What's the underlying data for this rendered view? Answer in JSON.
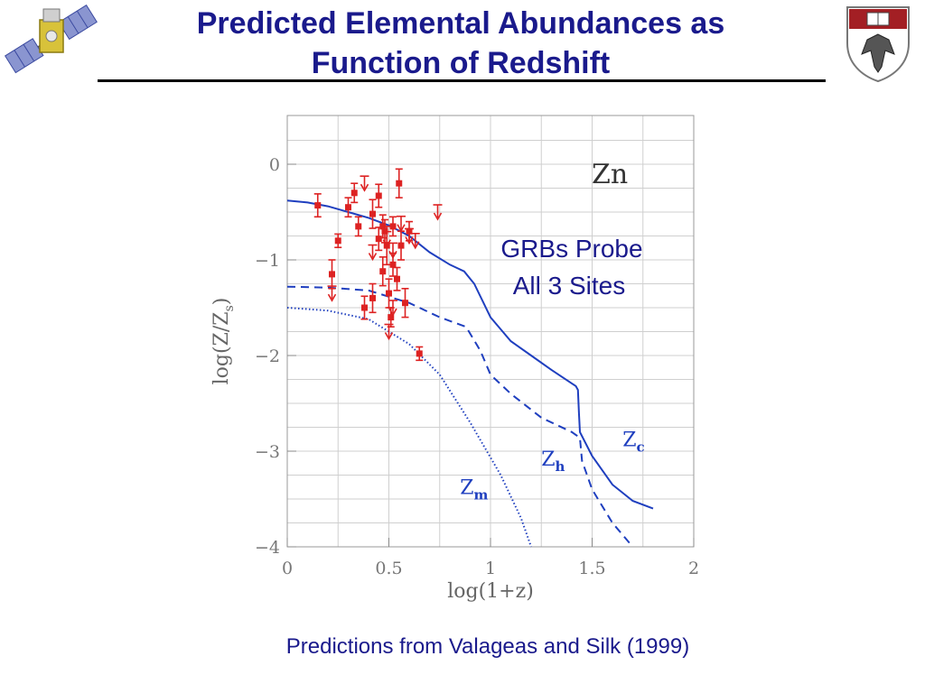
{
  "slide": {
    "title_line1": "Predicted Elemental Abundances as",
    "title_line2": "Function of Redshift",
    "caption": "Predictions from Valageas and Silk (1999)",
    "logo_left_icon": "satellite-icon",
    "logo_right_icon": "university-crest-icon",
    "title_color": "#1a1a8c"
  },
  "chart_data": {
    "type": "line",
    "element_label": "Zn",
    "annotation_line1": "GRBs Probe",
    "annotation_line2": "All 3 Sites",
    "xlabel": "log(1+z)",
    "ylabel": "log(Z/Z",
    "ylabel_sub": "s",
    "ylabel_close": ")",
    "xlim": [
      0,
      2
    ],
    "ylim": [
      -4,
      0.5
    ],
    "xticks": [
      0,
      0.5,
      1,
      1.5,
      2
    ],
    "xtick_labels": [
      "0",
      "0.5",
      "1",
      "1.5",
      "2"
    ],
    "yticks": [
      0,
      -1,
      -2,
      -3,
      -4
    ],
    "ytick_labels": [
      "0",
      "−1",
      "−2",
      "−3",
      "−4"
    ],
    "grid": true,
    "colors": {
      "model": "#1f3fbf",
      "data": "#dd2222"
    },
    "series": [
      {
        "label": "Z",
        "sub": "c",
        "style": "solid",
        "label_at": [
          1.65,
          -2.95
        ],
        "points": [
          [
            0,
            -0.38
          ],
          [
            0.1,
            -0.4
          ],
          [
            0.2,
            -0.44
          ],
          [
            0.3,
            -0.5
          ],
          [
            0.4,
            -0.56
          ],
          [
            0.5,
            -0.64
          ],
          [
            0.6,
            -0.75
          ],
          [
            0.7,
            -0.92
          ],
          [
            0.8,
            -1.05
          ],
          [
            0.87,
            -1.12
          ],
          [
            0.92,
            -1.25
          ],
          [
            1.0,
            -1.6
          ],
          [
            1.1,
            -1.85
          ],
          [
            1.2,
            -2.0
          ],
          [
            1.3,
            -2.15
          ],
          [
            1.42,
            -2.32
          ],
          [
            1.43,
            -2.36
          ],
          [
            1.435,
            -2.6
          ],
          [
            1.44,
            -2.8
          ],
          [
            1.5,
            -3.05
          ],
          [
            1.6,
            -3.35
          ],
          [
            1.7,
            -3.52
          ],
          [
            1.8,
            -3.6
          ]
        ]
      },
      {
        "label": "Z",
        "sub": "h",
        "style": "dashed",
        "label_at": [
          1.25,
          -3.15
        ],
        "points": [
          [
            0,
            -1.28
          ],
          [
            0.2,
            -1.29
          ],
          [
            0.4,
            -1.32
          ],
          [
            0.6,
            -1.45
          ],
          [
            0.75,
            -1.6
          ],
          [
            0.88,
            -1.7
          ],
          [
            0.95,
            -1.95
          ],
          [
            1.0,
            -2.2
          ],
          [
            1.1,
            -2.4
          ],
          [
            1.25,
            -2.65
          ],
          [
            1.4,
            -2.8
          ],
          [
            1.44,
            -2.86
          ],
          [
            1.45,
            -3.1
          ],
          [
            1.5,
            -3.4
          ],
          [
            1.6,
            -3.75
          ],
          [
            1.7,
            -4.0
          ]
        ]
      },
      {
        "label": "Z",
        "sub": "m",
        "style": "dotted",
        "label_at": [
          0.85,
          -3.45
        ],
        "points": [
          [
            0,
            -1.5
          ],
          [
            0.2,
            -1.53
          ],
          [
            0.4,
            -1.62
          ],
          [
            0.6,
            -1.88
          ],
          [
            0.75,
            -2.2
          ],
          [
            0.9,
            -2.7
          ],
          [
            1.05,
            -3.25
          ],
          [
            1.15,
            -3.7
          ],
          [
            1.2,
            -4.0
          ]
        ]
      }
    ],
    "data_points": [
      {
        "x": 0.15,
        "y": -0.43,
        "err": 0.12
      },
      {
        "x": 0.25,
        "y": -0.8,
        "err": 0.07
      },
      {
        "x": 0.3,
        "y": -0.45,
        "err": 0.1
      },
      {
        "x": 0.33,
        "y": -0.3,
        "err": 0.1
      },
      {
        "x": 0.22,
        "y": -1.15,
        "err": 0.15
      },
      {
        "x": 0.35,
        "y": -0.65,
        "err": 0.1
      },
      {
        "x": 0.38,
        "y": -1.5,
        "err": 0.12
      },
      {
        "x": 0.42,
        "y": -0.52,
        "err": 0.15
      },
      {
        "x": 0.42,
        "y": -1.4,
        "err": 0.15
      },
      {
        "x": 0.45,
        "y": -0.33,
        "err": 0.12
      },
      {
        "x": 0.45,
        "y": -0.78,
        "err": 0.12
      },
      {
        "x": 0.47,
        "y": -0.65,
        "err": 0.12
      },
      {
        "x": 0.47,
        "y": -1.12,
        "err": 0.15
      },
      {
        "x": 0.48,
        "y": -0.7,
        "err": 0.12
      },
      {
        "x": 0.49,
        "y": -0.85,
        "err": 0.2
      },
      {
        "x": 0.5,
        "y": -1.35,
        "err": 0.15
      },
      {
        "x": 0.51,
        "y": -1.6,
        "err": 0.1
      },
      {
        "x": 0.52,
        "y": -0.65,
        "err": 0.1
      },
      {
        "x": 0.52,
        "y": -1.05,
        "err": 0.12
      },
      {
        "x": 0.54,
        "y": -1.2,
        "err": 0.12
      },
      {
        "x": 0.55,
        "y": -0.2,
        "err": 0.15
      },
      {
        "x": 0.56,
        "y": -0.85,
        "err": 0.15
      },
      {
        "x": 0.58,
        "y": -1.45,
        "err": 0.15
      },
      {
        "x": 0.6,
        "y": -0.7,
        "err": 0.1
      },
      {
        "x": 0.65,
        "y": -1.98,
        "err": 0.07
      }
    ],
    "upper_limits": [
      {
        "x": 0.38,
        "y": -0.2
      },
      {
        "x": 0.42,
        "y": -0.92
      },
      {
        "x": 0.49,
        "y": -0.78
      },
      {
        "x": 0.5,
        "y": -1.75
      },
      {
        "x": 0.52,
        "y": -0.9
      },
      {
        "x": 0.52,
        "y": -1.5
      },
      {
        "x": 0.56,
        "y": -0.62
      },
      {
        "x": 0.6,
        "y": -0.75
      },
      {
        "x": 0.63,
        "y": -0.8
      },
      {
        "x": 0.74,
        "y": -0.5
      },
      {
        "x": 0.22,
        "y": -1.35
      }
    ]
  }
}
